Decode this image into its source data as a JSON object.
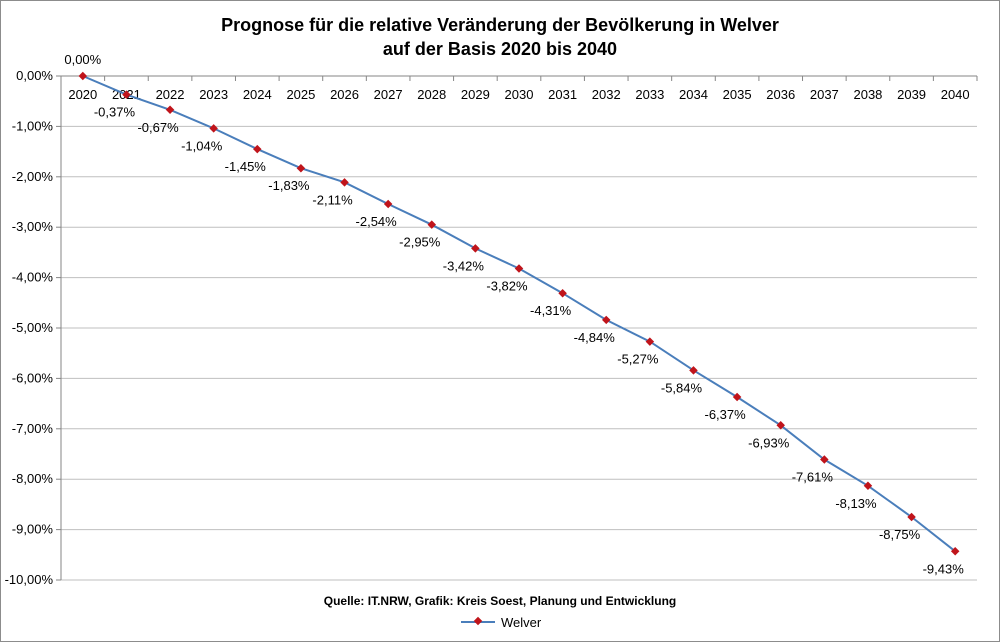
{
  "chart_data": {
    "type": "line",
    "title_line1": "Prognose für die relative Veränderung der Bevölkerung in Welver",
    "title_line2": "auf der Basis 2020 bis 2040",
    "xlabel": "",
    "ylabel": "",
    "categories": [
      "2020",
      "2021",
      "2022",
      "2023",
      "2024",
      "2025",
      "2026",
      "2027",
      "2028",
      "2029",
      "2030",
      "2031",
      "2032",
      "2033",
      "2034",
      "2035",
      "2036",
      "2037",
      "2038",
      "2039",
      "2040"
    ],
    "series": [
      {
        "name": "Welver",
        "values": [
          0.0,
          -0.37,
          -0.67,
          -1.04,
          -1.45,
          -1.83,
          -2.11,
          -2.54,
          -2.95,
          -3.42,
          -3.82,
          -4.31,
          -4.84,
          -5.27,
          -5.84,
          -6.37,
          -6.93,
          -7.61,
          -8.13,
          -8.75,
          -9.43
        ],
        "labels": [
          "0,00%",
          "-0,37%",
          "-0,67%",
          "-1,04%",
          "-1,45%",
          "-1,83%",
          "-2,11%",
          "-2,54%",
          "-2,95%",
          "-3,42%",
          "-3,82%",
          "-4,31%",
          "-4,84%",
          "-5,27%",
          "-5,84%",
          "-6,37%",
          "-6,93%",
          "-7,61%",
          "-8,13%",
          "-8,75%",
          "-9,43%"
        ],
        "color": "#4a7ebb",
        "marker_color": "#c0141b"
      }
    ],
    "ylim": [
      -10,
      0
    ],
    "yticks": [
      0,
      -1,
      -2,
      -3,
      -4,
      -5,
      -6,
      -7,
      -8,
      -9,
      -10
    ],
    "ytick_labels": [
      "0,00%",
      "-1,00%",
      "-2,00%",
      "-3,00%",
      "-4,00%",
      "-5,00%",
      "-6,00%",
      "-7,00%",
      "-8,00%",
      "-9,00%",
      "-10,00%"
    ],
    "grid": true,
    "legend_position": "bottom",
    "source": "Quelle: IT.NRW, Grafik: Kreis Soest, Planung und Entwicklung"
  }
}
